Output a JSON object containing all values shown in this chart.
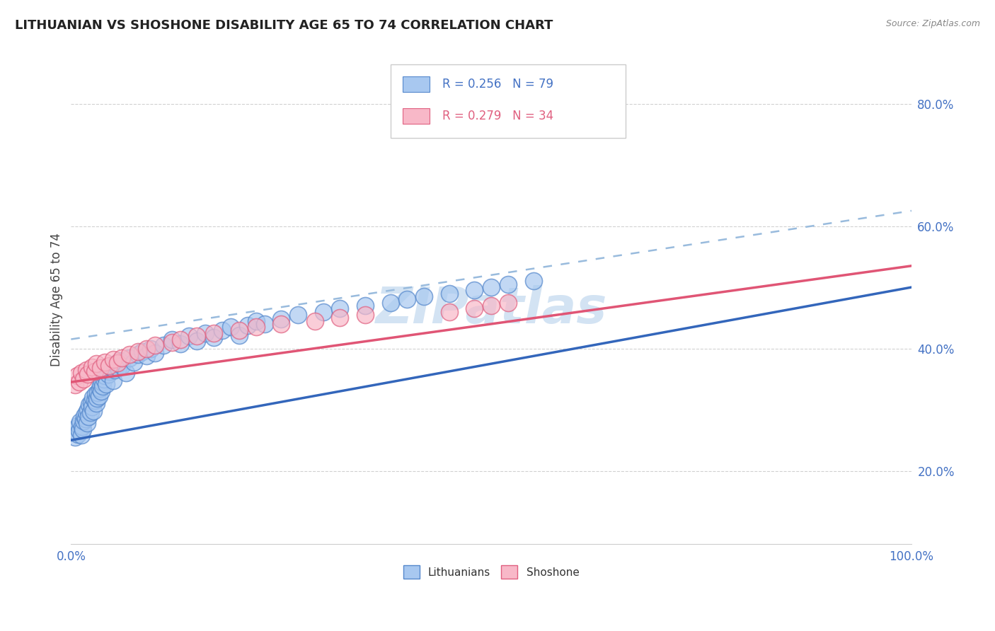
{
  "title": "LITHUANIAN VS SHOSHONE DISABILITY AGE 65 TO 74 CORRELATION CHART",
  "source_text": "Source: ZipAtlas.com",
  "ylabel": "Disability Age 65 to 74",
  "legend": {
    "r1": 0.256,
    "n1": 79,
    "r2": 0.279,
    "n2": 34
  },
  "watermark": "ZIPatlas",
  "lithuanian_color": "#A8C8F0",
  "lithuanian_edge_color": "#5588CC",
  "shoshone_color": "#F8B8C8",
  "shoshone_edge_color": "#E06080",
  "lithuanian_line_color": "#3366BB",
  "shoshone_line_color": "#E05575",
  "dashed_line_color": "#99BBDD",
  "background_color": "#FFFFFF",
  "grid_color": "#CCCCCC",
  "title_color": "#222222",
  "axis_label_color": "#4472C4",
  "legend_text_color": "#4472C4",
  "watermark_color": "#C8DCF0",
  "lithuanian_x": [
    0.005,
    0.007,
    0.008,
    0.009,
    0.01,
    0.011,
    0.012,
    0.013,
    0.014,
    0.015,
    0.016,
    0.017,
    0.018,
    0.019,
    0.02,
    0.021,
    0.022,
    0.023,
    0.024,
    0.025,
    0.026,
    0.027,
    0.028,
    0.029,
    0.03,
    0.031,
    0.032,
    0.033,
    0.034,
    0.035,
    0.036,
    0.037,
    0.038,
    0.039,
    0.04,
    0.042,
    0.044,
    0.046,
    0.048,
    0.05,
    0.052,
    0.054,
    0.056,
    0.058,
    0.06,
    0.065,
    0.07,
    0.075,
    0.08,
    0.085,
    0.09,
    0.095,
    0.1,
    0.11,
    0.12,
    0.13,
    0.14,
    0.15,
    0.16,
    0.17,
    0.18,
    0.19,
    0.2,
    0.21,
    0.22,
    0.23,
    0.25,
    0.27,
    0.3,
    0.32,
    0.35,
    0.38,
    0.4,
    0.42,
    0.45,
    0.48,
    0.5,
    0.52,
    0.55
  ],
  "lithuanian_y": [
    0.255,
    0.27,
    0.26,
    0.275,
    0.265,
    0.28,
    0.258,
    0.272,
    0.268,
    0.282,
    0.29,
    0.285,
    0.295,
    0.278,
    0.3,
    0.288,
    0.308,
    0.295,
    0.312,
    0.305,
    0.32,
    0.298,
    0.315,
    0.325,
    0.31,
    0.318,
    0.328,
    0.322,
    0.335,
    0.34,
    0.33,
    0.345,
    0.338,
    0.35,
    0.355,
    0.342,
    0.358,
    0.362,
    0.37,
    0.348,
    0.365,
    0.375,
    0.368,
    0.38,
    0.372,
    0.36,
    0.385,
    0.378,
    0.39,
    0.395,
    0.388,
    0.4,
    0.392,
    0.405,
    0.415,
    0.408,
    0.42,
    0.412,
    0.425,
    0.418,
    0.43,
    0.435,
    0.422,
    0.438,
    0.445,
    0.44,
    0.448,
    0.455,
    0.46,
    0.465,
    0.47,
    0.475,
    0.48,
    0.485,
    0.49,
    0.495,
    0.5,
    0.505,
    0.51
  ],
  "shoshone_x": [
    0.005,
    0.007,
    0.01,
    0.012,
    0.015,
    0.018,
    0.02,
    0.025,
    0.028,
    0.03,
    0.035,
    0.04,
    0.045,
    0.05,
    0.055,
    0.06,
    0.07,
    0.08,
    0.09,
    0.1,
    0.12,
    0.13,
    0.15,
    0.17,
    0.2,
    0.22,
    0.25,
    0.29,
    0.32,
    0.35,
    0.45,
    0.48,
    0.5,
    0.52
  ],
  "shoshone_y": [
    0.34,
    0.355,
    0.345,
    0.36,
    0.35,
    0.365,
    0.358,
    0.37,
    0.362,
    0.375,
    0.368,
    0.378,
    0.372,
    0.382,
    0.376,
    0.385,
    0.39,
    0.395,
    0.4,
    0.405,
    0.41,
    0.415,
    0.42,
    0.425,
    0.43,
    0.435,
    0.44,
    0.445,
    0.45,
    0.455,
    0.46,
    0.465,
    0.47,
    0.475
  ],
  "lith_line_x0": 0.0,
  "lith_line_y0": 0.25,
  "lith_line_x1": 1.0,
  "lith_line_y1": 0.5,
  "sho_line_x0": 0.0,
  "sho_line_y0": 0.345,
  "sho_line_x1": 1.0,
  "sho_line_y1": 0.535,
  "dash_line_x0": 0.0,
  "dash_line_y0": 0.415,
  "dash_line_x1": 1.0,
  "dash_line_y1": 0.625,
  "xlim": [
    0.0,
    1.0
  ],
  "ylim": [
    0.08,
    0.88
  ],
  "ytick_vals": [
    0.2,
    0.4,
    0.6,
    0.8
  ],
  "ytick_labels": [
    "20.0%",
    "40.0%",
    "60.0%",
    "80.0%"
  ],
  "xtick_vals": [
    0.0,
    0.5,
    1.0
  ],
  "xtick_labels_left": "0.0%",
  "xtick_labels_right": "100.0%"
}
